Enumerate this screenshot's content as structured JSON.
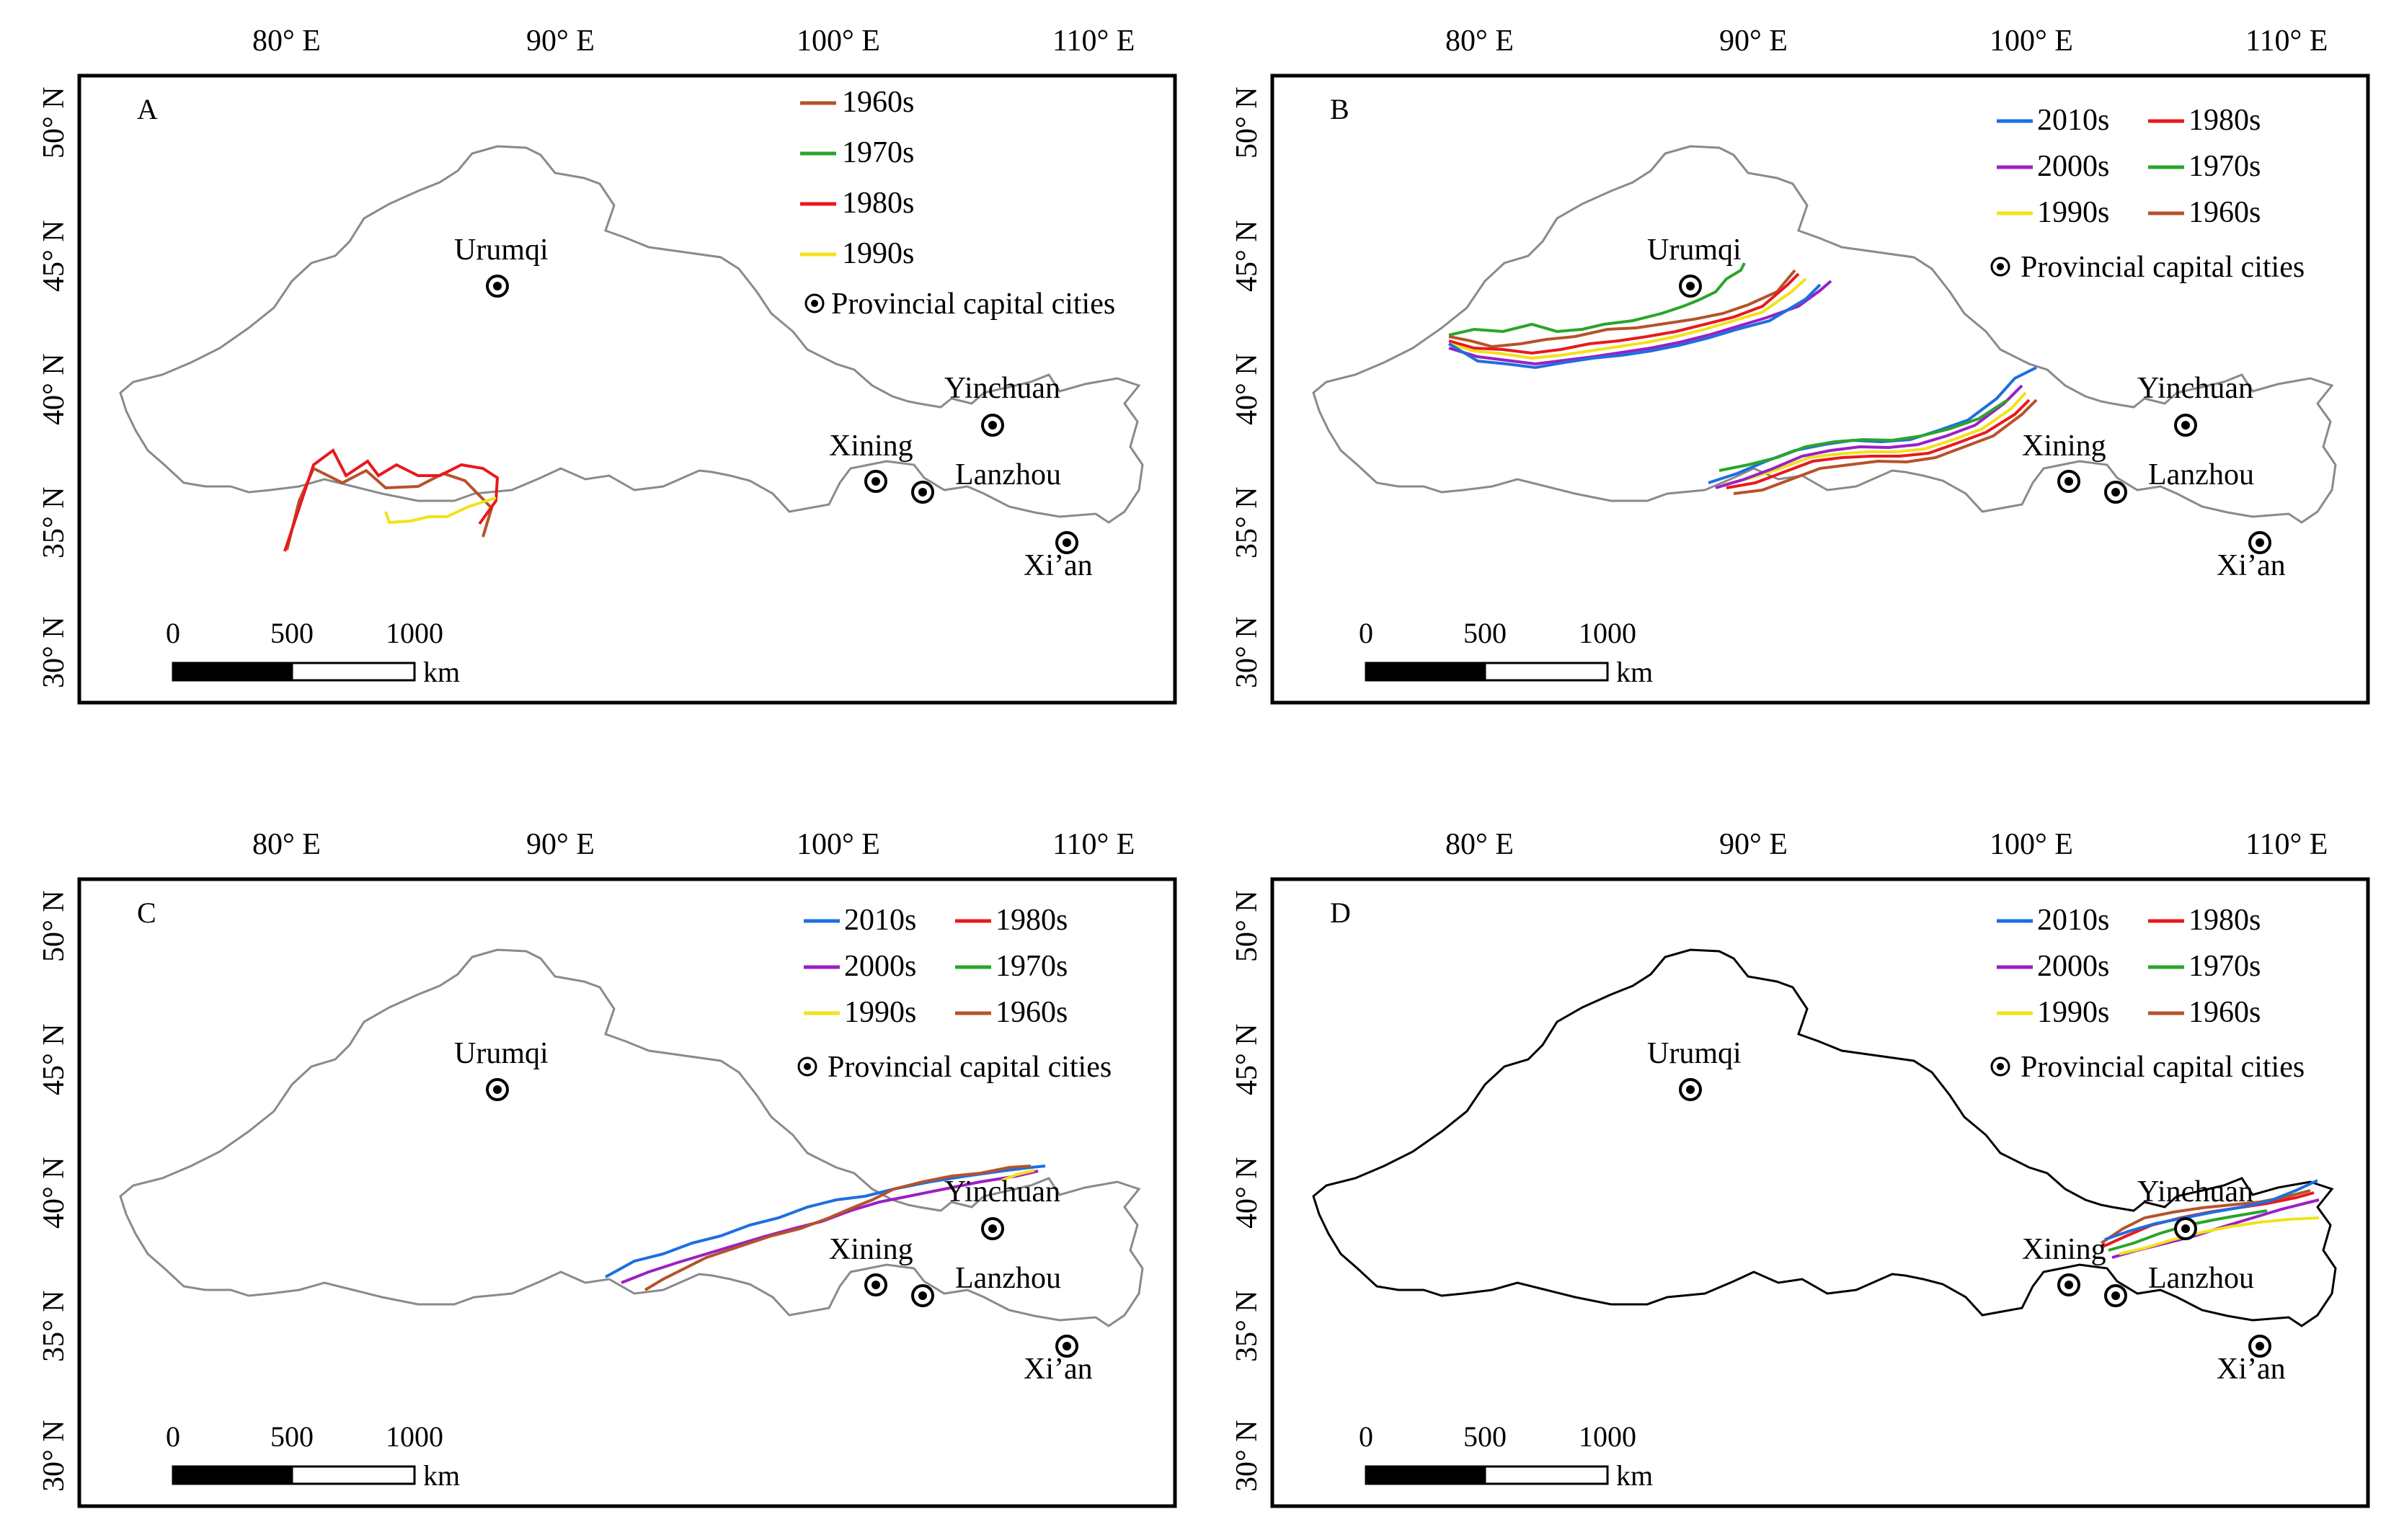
{
  "figure": {
    "panels": [
      {
        "letter": "A",
        "legend_items": [
          {
            "label": "1960s",
            "color_key": "1960s"
          },
          {
            "label": "1970s",
            "color_key": "1970s"
          },
          {
            "label": "1980s",
            "color_key": "1980s"
          },
          {
            "label": "1990s",
            "color_key": "1990s"
          }
        ],
        "legend_style": "single-column",
        "boundary_color": "#8a8a8a"
      },
      {
        "letter": "B",
        "legend_items": [
          {
            "label": "2010s",
            "color_key": "2010s"
          },
          {
            "label": "1980s",
            "color_key": "1980s"
          },
          {
            "label": "2000s",
            "color_key": "2000s"
          },
          {
            "label": "1970s",
            "color_key": "1970s"
          },
          {
            "label": "1990s",
            "color_key": "1990s"
          },
          {
            "label": "1960s",
            "color_key": "1960s"
          }
        ],
        "legend_style": "two-column",
        "boundary_color": "#8a8a8a"
      },
      {
        "letter": "C",
        "legend_items": [
          {
            "label": "2010s",
            "color_key": "2010s"
          },
          {
            "label": "1980s",
            "color_key": "1980s"
          },
          {
            "label": "2000s",
            "color_key": "2000s"
          },
          {
            "label": "1970s",
            "color_key": "1970s"
          },
          {
            "label": "1990s",
            "color_key": "1990s"
          },
          {
            "label": "1960s",
            "color_key": "1960s"
          }
        ],
        "legend_style": "two-column",
        "boundary_color": "#8a8a8a"
      },
      {
        "letter": "D",
        "legend_items": [
          {
            "label": "2010s",
            "color_key": "2010s"
          },
          {
            "label": "1980s",
            "color_key": "1980s"
          },
          {
            "label": "2000s",
            "color_key": "2000s"
          },
          {
            "label": "1970s",
            "color_key": "1970s"
          },
          {
            "label": "1990s",
            "color_key": "1990s"
          },
          {
            "label": "1960s",
            "color_key": "1960s"
          }
        ],
        "legend_style": "two-column",
        "boundary_color": "#000000"
      }
    ],
    "longitude_labels": [
      "80° E",
      "90° E",
      "100° E",
      "110° E"
    ],
    "latitude_labels": [
      "50° N",
      "45° N",
      "40° N",
      "35° N",
      "30° N"
    ],
    "cities": [
      {
        "name": "Urumqi"
      },
      {
        "name": "Yinchuan"
      },
      {
        "name": "Xining"
      },
      {
        "name": "Lanzhou"
      },
      {
        "name": "Xi’an"
      }
    ],
    "capital_legend_label": "Provincial capital cities",
    "scale_bar": {
      "ticks": [
        "0",
        "500",
        "1000"
      ],
      "unit": "km"
    },
    "decade_colors": {
      "1960s": "#b5532a",
      "1970s": "#2aa52a",
      "1980s": "#e8191e",
      "1990s": "#f2e21a",
      "2000s": "#9b1fc4",
      "2010s": "#1c6fe0"
    }
  }
}
